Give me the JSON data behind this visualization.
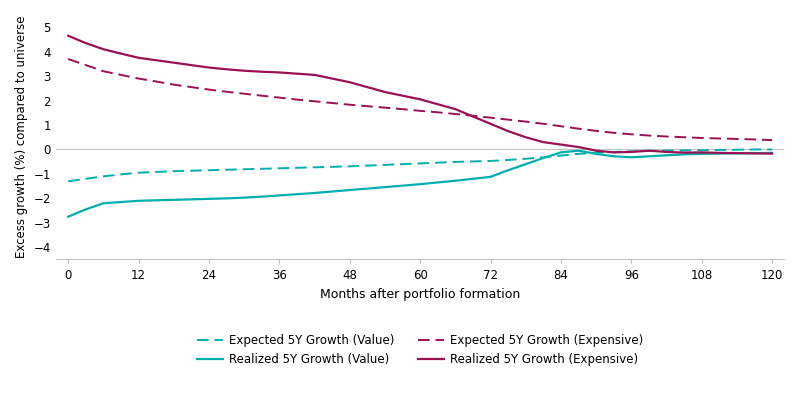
{
  "x": [
    0,
    3,
    6,
    9,
    12,
    15,
    18,
    21,
    24,
    27,
    30,
    33,
    36,
    39,
    42,
    45,
    48,
    51,
    54,
    57,
    60,
    63,
    66,
    69,
    72,
    75,
    78,
    81,
    84,
    87,
    90,
    93,
    96,
    99,
    102,
    105,
    108,
    111,
    114,
    117,
    120
  ],
  "expected_value": [
    -1.3,
    -1.2,
    -1.1,
    -1.02,
    -0.95,
    -0.92,
    -0.89,
    -0.87,
    -0.85,
    -0.83,
    -0.81,
    -0.79,
    -0.77,
    -0.75,
    -0.73,
    -0.71,
    -0.69,
    -0.66,
    -0.63,
    -0.6,
    -0.57,
    -0.54,
    -0.51,
    -0.49,
    -0.47,
    -0.43,
    -0.38,
    -0.32,
    -0.25,
    -0.18,
    -0.13,
    -0.1,
    -0.08,
    -0.06,
    -0.05,
    -0.04,
    -0.03,
    -0.02,
    -0.01,
    0.0,
    0.0
  ],
  "realized_value": [
    -2.75,
    -2.45,
    -2.2,
    -2.15,
    -2.1,
    -2.08,
    -2.06,
    -2.04,
    -2.02,
    -2.0,
    -1.97,
    -1.93,
    -1.88,
    -1.83,
    -1.78,
    -1.72,
    -1.66,
    -1.6,
    -1.54,
    -1.48,
    -1.42,
    -1.35,
    -1.28,
    -1.2,
    -1.12,
    -0.85,
    -0.6,
    -0.35,
    -0.12,
    -0.05,
    -0.18,
    -0.28,
    -0.32,
    -0.28,
    -0.24,
    -0.2,
    -0.18,
    -0.17,
    -0.16,
    -0.15,
    -0.14
  ],
  "expected_expensive": [
    3.7,
    3.45,
    3.2,
    3.05,
    2.9,
    2.78,
    2.65,
    2.55,
    2.45,
    2.36,
    2.28,
    2.2,
    2.12,
    2.04,
    1.97,
    1.9,
    1.83,
    1.77,
    1.71,
    1.65,
    1.58,
    1.52,
    1.45,
    1.38,
    1.3,
    1.22,
    1.14,
    1.05,
    0.95,
    0.85,
    0.76,
    0.68,
    0.62,
    0.57,
    0.53,
    0.5,
    0.47,
    0.45,
    0.43,
    0.41,
    0.38
  ],
  "realized_expensive": [
    4.65,
    4.35,
    4.1,
    3.92,
    3.75,
    3.65,
    3.55,
    3.45,
    3.35,
    3.28,
    3.22,
    3.18,
    3.15,
    3.1,
    3.05,
    2.9,
    2.75,
    2.55,
    2.35,
    2.2,
    2.05,
    1.85,
    1.65,
    1.35,
    1.05,
    0.75,
    0.5,
    0.3,
    0.2,
    0.1,
    -0.05,
    -0.12,
    -0.1,
    -0.05,
    -0.1,
    -0.13,
    -0.12,
    -0.14,
    -0.15,
    -0.16,
    -0.17
  ],
  "color_value": "#00AEAE",
  "color_expensive": "#9B1153",
  "xlabel": "Months after portfolio formation",
  "ylabel": "Excess growth (%) compared to universe",
  "xticks": [
    0,
    12,
    24,
    36,
    48,
    60,
    72,
    84,
    96,
    108,
    120
  ],
  "yticks": [
    -4,
    -3,
    -2,
    -1,
    0,
    1,
    2,
    3,
    4,
    5
  ],
  "ylim": [
    -4.5,
    5.5
  ],
  "xlim": [
    -2,
    122
  ],
  "legend_labels": [
    "Expected 5Y Growth (Value)",
    "Realized 5Y Growth (Value)",
    "Expected 5Y Growth (Expensive)",
    "Realized 5Y Growth (Expensive)"
  ]
}
